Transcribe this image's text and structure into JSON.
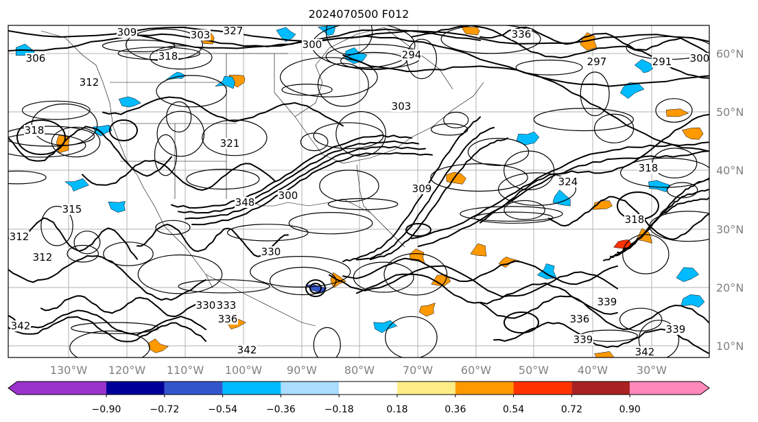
{
  "title": "2024070500 F012",
  "lat_labels": [
    "60°N",
    "50°N",
    "40°N",
    "30°N",
    "20°N",
    "10°N"
  ],
  "lon_labels": [
    "130°W",
    "120°W",
    "110°W",
    "100°W",
    "90°W",
    "80°W",
    "70°W",
    "60°W",
    "50°W",
    "40°W",
    "30°W"
  ],
  "colorbar": {
    "colors": [
      "#9933cc",
      "#000099",
      "#3355cc",
      "#00bbff",
      "#aaddff",
      "#ffffff",
      "#ffee88",
      "#ff9900",
      "#ff3300",
      "#aa2222",
      "#ff88bb"
    ],
    "tick_labels": [
      "−0.90",
      "−0.72",
      "−0.54",
      "−0.36",
      "−0.18",
      "0.18",
      "0.36",
      "0.54",
      "0.72",
      "0.90"
    ]
  },
  "contour_labels": [
    "309",
    "303",
    "318",
    "300",
    "306",
    "312",
    "318",
    "321",
    "348",
    "315",
    "312",
    "312",
    "330",
    "336",
    "339",
    "342",
    "297",
    "300",
    "291",
    "294",
    "309",
    "318",
    "324",
    "318",
    "339",
    "339",
    "342",
    "342",
    "333",
    "336",
    "336",
    "327",
    "303",
    "300",
    "330"
  ]
}
